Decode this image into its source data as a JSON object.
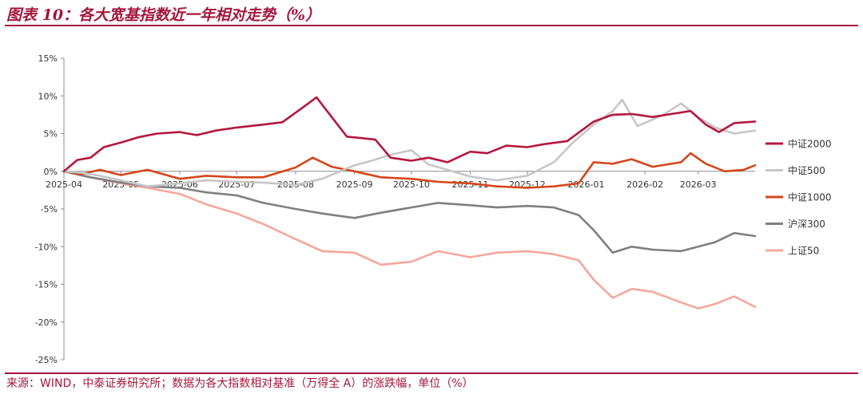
{
  "header": {
    "figure_title": "图表 10：各大宽基指数近一年相对走势（%）"
  },
  "footer": {
    "source": "来源：WIND，中泰证券研究所；数据为各大指数相对基准（万得全 A）的涨跌幅，单位（%）"
  },
  "colors": {
    "accent": "#a5163c"
  },
  "chart_data": {
    "type": "line",
    "title": "",
    "xlabel": "",
    "ylabel": "",
    "ylim": [
      -25,
      15
    ],
    "yticks": [
      15,
      10,
      5,
      0,
      -5,
      -10,
      -15,
      -20,
      -25
    ],
    "ytick_labels": [
      "15%",
      "10%",
      "5%",
      "0%",
      "-5%",
      "-10%",
      "-15%",
      "-20%",
      "-25%"
    ],
    "x_tick_labels": [
      "2025-04",
      "2025-05",
      "2025-06",
      "2025-07",
      "2025-08",
      "2025-09",
      "2025-10",
      "2025-11",
      "2025-12",
      "2026-01",
      "2026-02",
      "2026-03"
    ],
    "x_start": "2025-04-01",
    "x_end": "2026-03-31",
    "grid": false,
    "legend_position": "right",
    "series": [
      {
        "name": "中证2000",
        "color": "#b5163f",
        "points": [
          [
            "2025-04-01",
            0
          ],
          [
            "2025-04-08",
            1.5
          ],
          [
            "2025-04-15",
            1.8
          ],
          [
            "2025-04-22",
            3.2
          ],
          [
            "2025-05-01",
            3.8
          ],
          [
            "2025-05-10",
            4.5
          ],
          [
            "2025-05-20",
            5.0
          ],
          [
            "2025-06-01",
            5.2
          ],
          [
            "2025-06-10",
            4.8
          ],
          [
            "2025-06-20",
            5.4
          ],
          [
            "2025-07-01",
            5.8
          ],
          [
            "2025-07-15",
            6.2
          ],
          [
            "2025-07-25",
            6.5
          ],
          [
            "2025-08-05",
            8.5
          ],
          [
            "2025-08-12",
            9.8
          ],
          [
            "2025-08-20",
            7.2
          ],
          [
            "2025-08-28",
            4.6
          ],
          [
            "2025-09-05",
            4.4
          ],
          [
            "2025-09-12",
            4.2
          ],
          [
            "2025-09-20",
            1.8
          ],
          [
            "2025-10-01",
            1.4
          ],
          [
            "2025-10-10",
            1.8
          ],
          [
            "2025-10-20",
            1.2
          ],
          [
            "2025-11-01",
            2.6
          ],
          [
            "2025-11-10",
            2.4
          ],
          [
            "2025-11-20",
            3.4
          ],
          [
            "2025-12-01",
            3.2
          ],
          [
            "2025-12-10",
            3.6
          ],
          [
            "2025-12-22",
            4.0
          ],
          [
            "2026-01-05",
            6.6
          ],
          [
            "2026-01-15",
            7.5
          ],
          [
            "2026-01-25",
            7.6
          ],
          [
            "2026-02-05",
            7.2
          ],
          [
            "2026-02-15",
            7.6
          ],
          [
            "2026-02-25",
            8.0
          ],
          [
            "2026-03-05",
            6.2
          ],
          [
            "2026-03-12",
            5.2
          ],
          [
            "2026-03-20",
            6.4
          ],
          [
            "2026-03-31",
            6.6
          ]
        ]
      },
      {
        "name": "中证500",
        "color": "#c6c6c6",
        "points": [
          [
            "2025-04-01",
            0
          ],
          [
            "2025-04-10",
            -0.2
          ],
          [
            "2025-04-20",
            -0.6
          ],
          [
            "2025-05-01",
            -1.2
          ],
          [
            "2025-05-15",
            -2.0
          ],
          [
            "2025-06-01",
            -1.6
          ],
          [
            "2025-06-15",
            -1.2
          ],
          [
            "2025-07-01",
            -1.4
          ],
          [
            "2025-07-15",
            -1.5
          ],
          [
            "2025-08-01",
            -1.8
          ],
          [
            "2025-08-15",
            -1.0
          ],
          [
            "2025-09-01",
            0.8
          ],
          [
            "2025-09-10",
            1.4
          ],
          [
            "2025-09-20",
            2.2
          ],
          [
            "2025-10-01",
            2.8
          ],
          [
            "2025-10-10",
            0.9
          ],
          [
            "2025-10-20",
            0.2
          ],
          [
            "2025-11-01",
            -0.7
          ],
          [
            "2025-11-15",
            -1.2
          ],
          [
            "2025-12-01",
            -0.6
          ],
          [
            "2025-12-15",
            1.2
          ],
          [
            "2025-12-25",
            3.8
          ],
          [
            "2026-01-05",
            6.2
          ],
          [
            "2026-01-15",
            8.0
          ],
          [
            "2026-01-20",
            9.5
          ],
          [
            "2026-01-28",
            6.0
          ],
          [
            "2026-02-10",
            7.4
          ],
          [
            "2026-02-20",
            9.0
          ],
          [
            "2026-03-01",
            7.2
          ],
          [
            "2026-03-10",
            5.8
          ],
          [
            "2026-03-20",
            5.0
          ],
          [
            "2026-03-31",
            5.4
          ]
        ]
      },
      {
        "name": "中证1000",
        "color": "#d5461a",
        "points": [
          [
            "2025-04-01",
            0
          ],
          [
            "2025-04-10",
            -0.4
          ],
          [
            "2025-04-20",
            0.2
          ],
          [
            "2025-05-01",
            -0.5
          ],
          [
            "2025-05-15",
            0.2
          ],
          [
            "2025-06-01",
            -1.0
          ],
          [
            "2025-06-15",
            -0.6
          ],
          [
            "2025-07-01",
            -0.8
          ],
          [
            "2025-07-15",
            -0.8
          ],
          [
            "2025-08-01",
            0.5
          ],
          [
            "2025-08-10",
            1.8
          ],
          [
            "2025-08-20",
            0.6
          ],
          [
            "2025-09-01",
            0.0
          ],
          [
            "2025-09-15",
            -0.8
          ],
          [
            "2025-10-01",
            -1.0
          ],
          [
            "2025-10-15",
            -1.4
          ],
          [
            "2025-11-01",
            -1.6
          ],
          [
            "2025-11-15",
            -2.0
          ],
          [
            "2025-12-01",
            -2.2
          ],
          [
            "2025-12-15",
            -2.0
          ],
          [
            "2025-12-28",
            -1.6
          ],
          [
            "2026-01-05",
            1.2
          ],
          [
            "2026-01-15",
            1.0
          ],
          [
            "2026-01-25",
            1.6
          ],
          [
            "2026-02-05",
            0.6
          ],
          [
            "2026-02-20",
            1.2
          ],
          [
            "2026-02-25",
            2.4
          ],
          [
            "2026-03-05",
            1.0
          ],
          [
            "2026-03-15",
            0.0
          ],
          [
            "2026-03-25",
            0.2
          ],
          [
            "2026-03-31",
            0.8
          ]
        ]
      },
      {
        "name": "沪深300",
        "color": "#7f7f7f",
        "points": [
          [
            "2025-04-01",
            0
          ],
          [
            "2025-04-15",
            -0.8
          ],
          [
            "2025-05-01",
            -1.5
          ],
          [
            "2025-05-15",
            -2.0
          ],
          [
            "2025-06-01",
            -2.2
          ],
          [
            "2025-06-15",
            -2.8
          ],
          [
            "2025-07-01",
            -3.2
          ],
          [
            "2025-07-15",
            -4.2
          ],
          [
            "2025-08-01",
            -5.0
          ],
          [
            "2025-08-15",
            -5.6
          ],
          [
            "2025-09-01",
            -6.2
          ],
          [
            "2025-09-15",
            -5.5
          ],
          [
            "2025-10-01",
            -4.8
          ],
          [
            "2025-10-15",
            -4.2
          ],
          [
            "2025-11-01",
            -4.5
          ],
          [
            "2025-11-15",
            -4.8
          ],
          [
            "2025-12-01",
            -4.6
          ],
          [
            "2025-12-15",
            -4.8
          ],
          [
            "2025-12-28",
            -5.8
          ],
          [
            "2026-01-05",
            -7.8
          ],
          [
            "2026-01-15",
            -10.8
          ],
          [
            "2026-01-25",
            -10.0
          ],
          [
            "2026-02-05",
            -10.4
          ],
          [
            "2026-02-20",
            -10.6
          ],
          [
            "2026-03-01",
            -10.0
          ],
          [
            "2026-03-10",
            -9.4
          ],
          [
            "2026-03-20",
            -8.2
          ],
          [
            "2026-03-31",
            -8.6
          ]
        ]
      },
      {
        "name": "上证50",
        "color": "#f5a79a",
        "points": [
          [
            "2025-04-01",
            0
          ],
          [
            "2025-04-15",
            -0.8
          ],
          [
            "2025-05-01",
            -1.6
          ],
          [
            "2025-05-15",
            -2.2
          ],
          [
            "2025-06-01",
            -3.0
          ],
          [
            "2025-06-15",
            -4.4
          ],
          [
            "2025-07-01",
            -5.6
          ],
          [
            "2025-07-15",
            -7.0
          ],
          [
            "2025-08-01",
            -9.0
          ],
          [
            "2025-08-15",
            -10.6
          ],
          [
            "2025-09-01",
            -10.8
          ],
          [
            "2025-09-15",
            -12.4
          ],
          [
            "2025-10-01",
            -12.0
          ],
          [
            "2025-10-15",
            -10.6
          ],
          [
            "2025-11-01",
            -11.4
          ],
          [
            "2025-11-15",
            -10.8
          ],
          [
            "2025-12-01",
            -10.6
          ],
          [
            "2025-12-15",
            -11.0
          ],
          [
            "2025-12-28",
            -11.8
          ],
          [
            "2026-01-05",
            -14.4
          ],
          [
            "2026-01-15",
            -16.8
          ],
          [
            "2026-01-25",
            -15.6
          ],
          [
            "2026-02-05",
            -16.0
          ],
          [
            "2026-02-20",
            -17.4
          ],
          [
            "2026-03-01",
            -18.2
          ],
          [
            "2026-03-10",
            -17.6
          ],
          [
            "2026-03-20",
            -16.6
          ],
          [
            "2026-03-31",
            -18.0
          ]
        ]
      }
    ]
  }
}
